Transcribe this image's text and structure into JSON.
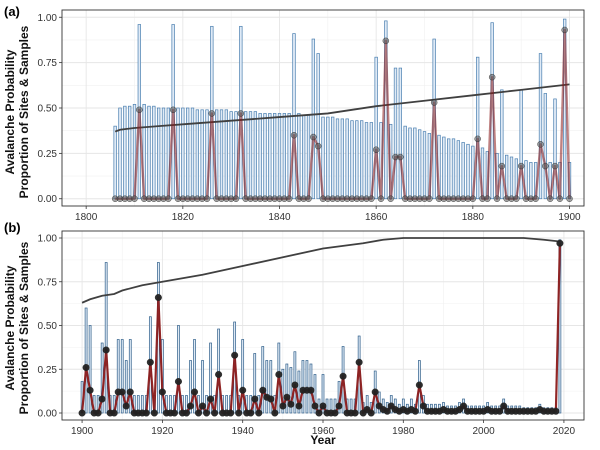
{
  "chart_data": [
    {
      "type": "line",
      "panel_label": "(a)",
      "ylabel_lines": [
        "Avalanche Probability",
        "Proportion of Sites & Samples"
      ],
      "xlabel": "",
      "xlim": [
        1795,
        1903
      ],
      "ylim": [
        -0.04,
        1.04
      ],
      "xticks": [
        1800,
        1820,
        1840,
        1860,
        1880,
        1900
      ],
      "yticks": [
        0.0,
        0.25,
        0.5,
        0.75,
        1.0
      ],
      "ytick_labels": [
        "0.00",
        "0.25",
        "0.50",
        "0.75",
        "1.00"
      ],
      "grid": true,
      "colors": {
        "probability_line": "#8b1a1a",
        "proportion_line": "#404040",
        "bars": "#4a7fb0",
        "bar_fill": "#dbe8f5",
        "points": "#555555"
      },
      "series": [
        {
          "role": "avalanche_probability",
          "x": [
            1806,
            1807,
            1808,
            1809,
            1810,
            1811,
            1812,
            1813,
            1814,
            1815,
            1816,
            1817,
            1818,
            1819,
            1820,
            1821,
            1822,
            1823,
            1824,
            1825,
            1826,
            1827,
            1828,
            1829,
            1830,
            1831,
            1832,
            1833,
            1834,
            1835,
            1836,
            1837,
            1838,
            1839,
            1840,
            1841,
            1842,
            1843,
            1844,
            1845,
            1846,
            1847,
            1848,
            1849,
            1850,
            1851,
            1852,
            1853,
            1854,
            1855,
            1856,
            1857,
            1858,
            1859,
            1860,
            1861,
            1862,
            1863,
            1864,
            1865,
            1866,
            1867,
            1868,
            1869,
            1870,
            1871,
            1872,
            1873,
            1874,
            1875,
            1876,
            1877,
            1878,
            1879,
            1880,
            1881,
            1882,
            1883,
            1884,
            1885,
            1886,
            1887,
            1888,
            1889,
            1890,
            1891,
            1892,
            1893,
            1894,
            1895,
            1896,
            1897,
            1898,
            1899,
            1900
          ],
          "y": [
            0,
            0,
            0,
            0,
            0,
            0.49,
            0,
            0,
            0,
            0,
            0,
            0,
            0.49,
            0,
            0,
            0,
            0,
            0,
            0,
            0,
            0.47,
            0,
            0,
            0,
            0,
            0,
            0.47,
            0,
            0,
            0,
            0,
            0,
            0,
            0,
            0,
            0,
            0,
            0.35,
            0,
            0,
            0,
            0.34,
            0.29,
            0,
            0,
            0,
            0,
            0,
            0,
            0,
            0,
            0,
            0,
            0,
            0.27,
            0,
            0.87,
            0,
            0.23,
            0.23,
            0,
            0,
            0,
            0,
            0,
            0,
            0.53,
            0,
            0,
            0,
            0,
            0,
            0,
            0,
            0,
            0.33,
            0,
            0,
            0.67,
            0,
            0.18,
            0,
            0,
            0,
            0.18,
            0,
            0,
            0,
            0.3,
            0.18,
            0,
            0.18,
            0,
            0.93,
            0
          ],
          "error_upper": [
            0.4,
            0.5,
            0.51,
            0.51,
            0.52,
            0.96,
            0.52,
            0.51,
            0.51,
            0.5,
            0.5,
            0.5,
            0.96,
            0.5,
            0.5,
            0.5,
            0.5,
            0.49,
            0.49,
            0.49,
            0.95,
            0.49,
            0.49,
            0.49,
            0.48,
            0.48,
            0.95,
            0.48,
            0.48,
            0.48,
            0.47,
            0.47,
            0.47,
            0.47,
            0.47,
            0.47,
            0.47,
            0.91,
            0.47,
            0.46,
            0.46,
            0.88,
            0.8,
            0.45,
            0.45,
            0.45,
            0.44,
            0.44,
            0.44,
            0.43,
            0.43,
            0.43,
            0.42,
            0.42,
            0.78,
            0.42,
            0.98,
            0.41,
            0.72,
            0.72,
            0.4,
            0.39,
            0.39,
            0.38,
            0.37,
            0.36,
            0.88,
            0.35,
            0.34,
            0.33,
            0.33,
            0.32,
            0.31,
            0.3,
            0.29,
            0.78,
            0.28,
            0.26,
            0.97,
            0.25,
            0.6,
            0.24,
            0.23,
            0.22,
            0.6,
            0.21,
            0.2,
            0.2,
            0.8,
            0.58,
            0.2,
            0.55,
            0.2,
            0.99,
            0.2
          ]
        },
        {
          "role": "proportion_sites_samples",
          "x": [
            1806,
            1807,
            1810,
            1815,
            1820,
            1830,
            1840,
            1850,
            1855,
            1860,
            1870,
            1880,
            1890,
            1900
          ],
          "y": [
            0.37,
            0.38,
            0.39,
            0.4,
            0.41,
            0.43,
            0.45,
            0.47,
            0.49,
            0.51,
            0.54,
            0.57,
            0.6,
            0.63
          ]
        }
      ]
    },
    {
      "type": "line",
      "panel_label": "(b)",
      "ylabel_lines": [
        "Avalanche Probability",
        "Proportion of Sites & Samples"
      ],
      "xlabel": "Year",
      "xlim": [
        1895,
        2025
      ],
      "ylim": [
        -0.04,
        1.04
      ],
      "xticks": [
        1900,
        1920,
        1940,
        1960,
        1980,
        2000,
        2020
      ],
      "yticks": [
        0.0,
        0.25,
        0.5,
        0.75,
        1.0
      ],
      "ytick_labels": [
        "0.00",
        "0.25",
        "0.50",
        "0.75",
        "1.00"
      ],
      "grid": true,
      "colors": {
        "probability_line": "#8b1a1a",
        "proportion_line": "#404040",
        "bars": "#2f5f8a",
        "bar_fill": "#dbe8f5",
        "points": "#222222"
      },
      "series": [
        {
          "role": "avalanche_probability",
          "x": [
            1900,
            1901,
            1902,
            1903,
            1904,
            1905,
            1906,
            1907,
            1908,
            1909,
            1910,
            1911,
            1912,
            1913,
            1914,
            1915,
            1916,
            1917,
            1918,
            1919,
            1920,
            1921,
            1922,
            1923,
            1924,
            1925,
            1926,
            1927,
            1928,
            1929,
            1930,
            1931,
            1932,
            1933,
            1934,
            1935,
            1936,
            1937,
            1938,
            1939,
            1940,
            1941,
            1942,
            1943,
            1944,
            1945,
            1946,
            1947,
            1948,
            1949,
            1950,
            1951,
            1952,
            1953,
            1954,
            1955,
            1956,
            1957,
            1958,
            1959,
            1960,
            1961,
            1962,
            1963,
            1964,
            1965,
            1966,
            1967,
            1968,
            1969,
            1970,
            1971,
            1972,
            1973,
            1974,
            1975,
            1976,
            1977,
            1978,
            1979,
            1980,
            1981,
            1982,
            1983,
            1984,
            1985,
            1986,
            1987,
            1988,
            1989,
            1990,
            1991,
            1992,
            1993,
            1994,
            1995,
            1996,
            1997,
            1998,
            1999,
            2000,
            2001,
            2002,
            2003,
            2004,
            2005,
            2006,
            2007,
            2008,
            2009,
            2010,
            2011,
            2012,
            2013,
            2014,
            2015,
            2016,
            2017,
            2018,
            2019
          ],
          "y": [
            0,
            0.26,
            0.13,
            0,
            0,
            0.08,
            0.36,
            0,
            0,
            0.12,
            0.12,
            0.04,
            0.12,
            0,
            0,
            0,
            0,
            0.29,
            0,
            0.66,
            0.12,
            0,
            0,
            0,
            0.18,
            0,
            0,
            0.04,
            0.12,
            0,
            0.04,
            0,
            0.08,
            0,
            0.22,
            0,
            0,
            0,
            0.33,
            0,
            0.13,
            0,
            0,
            0.08,
            0,
            0.13,
            0.09,
            0.08,
            0,
            0.22,
            0.04,
            0.09,
            0.05,
            0.16,
            0.04,
            0.13,
            0.13,
            0.13,
            0.04,
            0,
            0.04,
            0,
            0,
            0,
            0.04,
            0.21,
            0,
            0,
            0,
            0.29,
            0,
            0.02,
            0,
            0.12,
            0.04,
            0.02,
            0.01,
            0.04,
            0.02,
            0.01,
            0.02,
            0.01,
            0.02,
            0.01,
            0.16,
            0.04,
            0.01,
            0.01,
            0.01,
            0.01,
            0.02,
            0.01,
            0.01,
            0.01,
            0.02,
            0.04,
            0.01,
            0.01,
            0.01,
            0.01,
            0.01,
            0.02,
            0.01,
            0.01,
            0.01,
            0.04,
            0.01,
            0.01,
            0.01,
            0.01,
            0.01,
            0.01,
            0.01,
            0.01,
            0.02,
            0.01,
            0.01,
            0.01,
            0.01,
            0.97
          ],
          "error_upper": [
            0.18,
            0.6,
            0.5,
            0.1,
            0.1,
            0.4,
            0.86,
            0.1,
            0.1,
            0.42,
            0.42,
            0.3,
            0.42,
            0.1,
            0.1,
            0.1,
            0.1,
            0.55,
            0.1,
            0.86,
            0.42,
            0.1,
            0.1,
            0.1,
            0.5,
            0.1,
            0.1,
            0.3,
            0.42,
            0.1,
            0.3,
            0.1,
            0.4,
            0.1,
            0.48,
            0.1,
            0.1,
            0.1,
            0.52,
            0.1,
            0.42,
            0.1,
            0.1,
            0.34,
            0.1,
            0.38,
            0.3,
            0.3,
            0.1,
            0.4,
            0.25,
            0.28,
            0.26,
            0.35,
            0.24,
            0.3,
            0.3,
            0.28,
            0.22,
            0.08,
            0.22,
            0.08,
            0.08,
            0.08,
            0.18,
            0.38,
            0.08,
            0.08,
            0.08,
            0.44,
            0.06,
            0.1,
            0.06,
            0.24,
            0.12,
            0.08,
            0.06,
            0.1,
            0.08,
            0.05,
            0.08,
            0.05,
            0.08,
            0.05,
            0.3,
            0.1,
            0.05,
            0.05,
            0.05,
            0.05,
            0.06,
            0.04,
            0.04,
            0.04,
            0.06,
            0.08,
            0.04,
            0.04,
            0.04,
            0.04,
            0.04,
            0.06,
            0.04,
            0.04,
            0.04,
            0.08,
            0.04,
            0.04,
            0.04,
            0.04,
            0.03,
            0.03,
            0.03,
            0.03,
            0.05,
            0.03,
            0.03,
            0.03,
            0.03,
            0.99
          ]
        },
        {
          "role": "proportion_sites_samples",
          "x": [
            1900,
            1902,
            1905,
            1908,
            1910,
            1915,
            1920,
            1930,
            1940,
            1950,
            1960,
            1970,
            1975,
            1980,
            1990,
            2000,
            2010,
            2015,
            2019
          ],
          "y": [
            0.63,
            0.65,
            0.67,
            0.68,
            0.7,
            0.73,
            0.75,
            0.79,
            0.84,
            0.89,
            0.94,
            0.97,
            0.99,
            1.0,
            1.0,
            1.0,
            1.0,
            0.99,
            0.98
          ]
        }
      ]
    }
  ]
}
